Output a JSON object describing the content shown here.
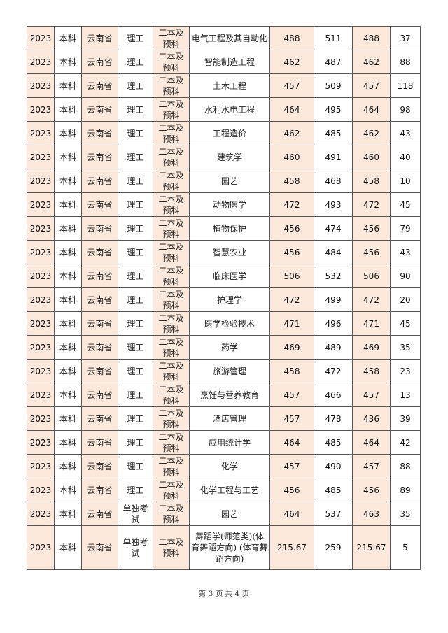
{
  "table": {
    "rows": [
      {
        "year": "2023",
        "level": "本科",
        "province": "云南省",
        "category": "理工",
        "batch": "二本及预科",
        "major": "电气工程及其自动化",
        "score_a": "488",
        "score_b": "511",
        "score_c": "488",
        "count": "37"
      },
      {
        "year": "2023",
        "level": "本科",
        "province": "云南省",
        "category": "理工",
        "batch": "二本及预科",
        "major": "智能制造工程",
        "score_a": "462",
        "score_b": "487",
        "score_c": "462",
        "count": "88"
      },
      {
        "year": "2023",
        "level": "本科",
        "province": "云南省",
        "category": "理工",
        "batch": "二本及预科",
        "major": "土木工程",
        "score_a": "457",
        "score_b": "509",
        "score_c": "457",
        "count": "118"
      },
      {
        "year": "2023",
        "level": "本科",
        "province": "云南省",
        "category": "理工",
        "batch": "二本及预科",
        "major": "水利水电工程",
        "score_a": "464",
        "score_b": "495",
        "score_c": "464",
        "count": "98"
      },
      {
        "year": "2023",
        "level": "本科",
        "province": "云南省",
        "category": "理工",
        "batch": "二本及预科",
        "major": "工程造价",
        "score_a": "462",
        "score_b": "485",
        "score_c": "462",
        "count": "43"
      },
      {
        "year": "2023",
        "level": "本科",
        "province": "云南省",
        "category": "理工",
        "batch": "二本及预科",
        "major": "建筑学",
        "score_a": "460",
        "score_b": "491",
        "score_c": "460",
        "count": "40"
      },
      {
        "year": "2023",
        "level": "本科",
        "province": "云南省",
        "category": "理工",
        "batch": "二本及预科",
        "major": "园艺",
        "score_a": "458",
        "score_b": "468",
        "score_c": "458",
        "count": "10"
      },
      {
        "year": "2023",
        "level": "本科",
        "province": "云南省",
        "category": "理工",
        "batch": "二本及预科",
        "major": "动物医学",
        "score_a": "472",
        "score_b": "493",
        "score_c": "472",
        "count": "45"
      },
      {
        "year": "2023",
        "level": "本科",
        "province": "云南省",
        "category": "理工",
        "batch": "二本及预科",
        "major": "植物保护",
        "score_a": "456",
        "score_b": "474",
        "score_c": "456",
        "count": "79"
      },
      {
        "year": "2023",
        "level": "本科",
        "province": "云南省",
        "category": "理工",
        "batch": "二本及预科",
        "major": "智慧农业",
        "score_a": "456",
        "score_b": "484",
        "score_c": "456",
        "count": "43"
      },
      {
        "year": "2023",
        "level": "本科",
        "province": "云南省",
        "category": "理工",
        "batch": "二本及预科",
        "major": "临床医学",
        "score_a": "506",
        "score_b": "532",
        "score_c": "506",
        "count": "90"
      },
      {
        "year": "2023",
        "level": "本科",
        "province": "云南省",
        "category": "理工",
        "batch": "二本及预科",
        "major": "护理学",
        "score_a": "472",
        "score_b": "499",
        "score_c": "472",
        "count": "20"
      },
      {
        "year": "2023",
        "level": "本科",
        "province": "云南省",
        "category": "理工",
        "batch": "二本及预科",
        "major": "医学检验技术",
        "score_a": "471",
        "score_b": "496",
        "score_c": "471",
        "count": "45"
      },
      {
        "year": "2023",
        "level": "本科",
        "province": "云南省",
        "category": "理工",
        "batch": "二本及预科",
        "major": "药学",
        "score_a": "469",
        "score_b": "489",
        "score_c": "469",
        "count": "35"
      },
      {
        "year": "2023",
        "level": "本科",
        "province": "云南省",
        "category": "理工",
        "batch": "二本及预科",
        "major": "旅游管理",
        "score_a": "458",
        "score_b": "472",
        "score_c": "458",
        "count": "23"
      },
      {
        "year": "2023",
        "level": "本科",
        "province": "云南省",
        "category": "理工",
        "batch": "二本及预科",
        "major": "烹饪与营养教育",
        "score_a": "457",
        "score_b": "466",
        "score_c": "457",
        "count": "13"
      },
      {
        "year": "2023",
        "level": "本科",
        "province": "云南省",
        "category": "理工",
        "batch": "二本及预科",
        "major": "酒店管理",
        "score_a": "457",
        "score_b": "478",
        "score_c": "436",
        "count": "39"
      },
      {
        "year": "2023",
        "level": "本科",
        "province": "云南省",
        "category": "理工",
        "batch": "二本及预科",
        "major": "应用统计学",
        "score_a": "464",
        "score_b": "485",
        "score_c": "464",
        "count": "42"
      },
      {
        "year": "2023",
        "level": "本科",
        "province": "云南省",
        "category": "理工",
        "batch": "二本及预科",
        "major": "化学",
        "score_a": "457",
        "score_b": "490",
        "score_c": "457",
        "count": "88"
      },
      {
        "year": "2023",
        "level": "本科",
        "province": "云南省",
        "category": "理工",
        "batch": "二本及预科",
        "major": "化学工程与工艺",
        "score_a": "456",
        "score_b": "485",
        "score_c": "456",
        "count": "89"
      },
      {
        "year": "2023",
        "level": "本科",
        "province": "云南省",
        "category": "单独考试",
        "batch": "二本及预科",
        "major": "园艺",
        "score_a": "464",
        "score_b": "537",
        "score_c": "463",
        "count": "35"
      },
      {
        "year": "2023",
        "level": "本科",
        "province": "云南省",
        "category": "单独考试",
        "batch": "二本及预科",
        "major": "舞蹈学(师范类)(体育舞蹈方向) (体育舞蹈方向)",
        "score_a": "215.67",
        "score_b": "259",
        "score_c": "215.67",
        "count": "5"
      }
    ]
  },
  "footer": {
    "prefix": "第",
    "page": "3",
    "middle": "页 共",
    "total": "4",
    "suffix": "页"
  },
  "colors": {
    "highlight_column": "#fde9dc",
    "border": "#555555"
  }
}
